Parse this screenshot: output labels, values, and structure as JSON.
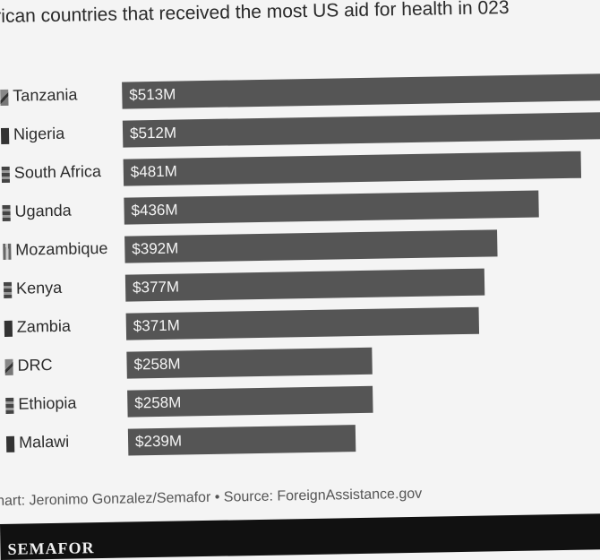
{
  "header": {
    "title": "rican countries that received the most US aid for health in 023"
  },
  "chart_data": {
    "type": "bar",
    "orientation": "horizontal",
    "title": "rican countries that received the most US aid for health in 023",
    "categories": [
      "Tanzania",
      "Nigeria",
      "South Africa",
      "Uganda",
      "Mozambique",
      "Kenya",
      "Zambia",
      "DRC",
      "Ethiopia",
      "Malawi"
    ],
    "values": [
      513,
      512,
      481,
      436,
      392,
      377,
      371,
      258,
      258,
      239
    ],
    "value_labels": [
      "$513M",
      "$512M",
      "$481M",
      "$436M",
      "$392M",
      "$377M",
      "$371M",
      "$258M",
      "$258M",
      "$239M"
    ],
    "unit": "USD millions",
    "xlim": [
      0,
      513
    ],
    "bar_color": "#555555"
  },
  "footer": {
    "credit": "hart: Jeronimo Gonzalez/Semafor • Source: ForeignAssistance.gov",
    "brand": "SEMAFOR"
  }
}
